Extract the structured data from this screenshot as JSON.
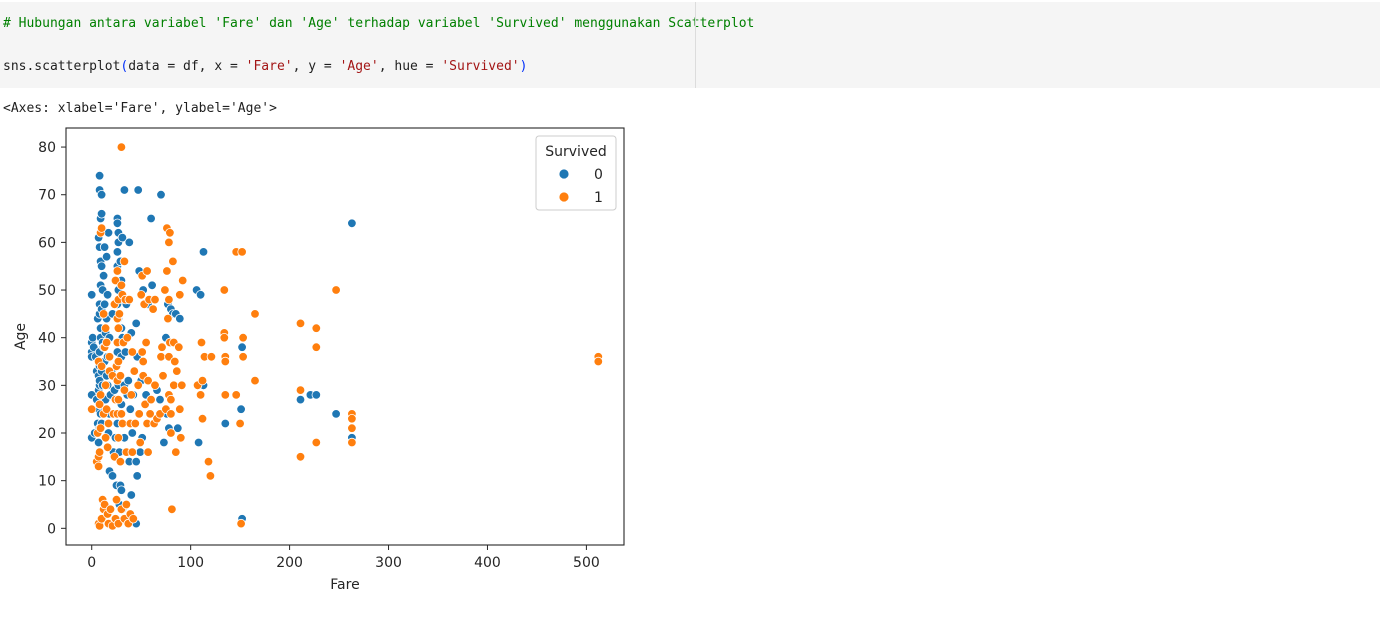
{
  "code_cell": {
    "comment": "# Hubungan antara variabel 'Fare' dan 'Age' terhadap variabel 'Survived' menggunakan Scatterplot",
    "call": {
      "fn": "sns.scatterplot",
      "open": "(",
      "arg1": "data = df, x = ",
      "x_str": "'Fare'",
      "arg2": ", y = ",
      "y_str": "'Age'",
      "arg3": ", hue = ",
      "hue_str": "'Survived'",
      "close": ")"
    }
  },
  "output_text": "<Axes: xlabel='Fare', ylabel='Age'>",
  "chart_data": {
    "type": "scatter",
    "xlabel": "Fare",
    "ylabel": "Age",
    "xlim": [
      -26,
      538
    ],
    "ylim": [
      -3.5,
      84
    ],
    "xticks": [
      0,
      100,
      200,
      300,
      400,
      500
    ],
    "yticks": [
      0,
      10,
      20,
      30,
      40,
      50,
      60,
      70,
      80
    ],
    "legend": {
      "title": "Survived",
      "position": "top-right"
    },
    "colors": {
      "0": "#1f77b4",
      "1": "#ff7f0e"
    },
    "series": [
      {
        "name": "0",
        "points": [
          [
            0,
            49
          ],
          [
            0,
            39
          ],
          [
            0,
            37
          ],
          [
            0,
            36
          ],
          [
            0,
            28
          ],
          [
            0,
            19
          ],
          [
            1,
            40
          ],
          [
            2,
            38
          ],
          [
            3,
            20
          ],
          [
            4,
            36
          ],
          [
            5,
            33
          ],
          [
            5,
            27
          ],
          [
            6,
            22
          ],
          [
            6,
            44
          ],
          [
            7,
            61
          ],
          [
            7,
            32
          ],
          [
            7,
            25
          ],
          [
            7,
            35
          ],
          [
            7,
            18
          ],
          [
            7,
            29
          ],
          [
            8,
            74
          ],
          [
            8,
            71
          ],
          [
            8,
            45
          ],
          [
            8,
            21
          ],
          [
            8,
            26
          ],
          [
            8,
            30
          ],
          [
            8,
            34
          ],
          [
            8,
            16
          ],
          [
            8,
            31
          ],
          [
            8,
            37
          ],
          [
            8,
            47
          ],
          [
            8,
            59
          ],
          [
            9,
            65
          ],
          [
            9,
            51
          ],
          [
            9,
            40
          ],
          [
            9,
            28
          ],
          [
            9,
            24
          ],
          [
            9,
            42
          ],
          [
            9,
            56
          ],
          [
            10,
            70
          ],
          [
            10,
            66
          ],
          [
            10,
            55
          ],
          [
            10,
            46
          ],
          [
            10,
            33
          ],
          [
            10,
            22
          ],
          [
            11,
            50
          ],
          [
            11,
            39
          ],
          [
            11,
            30
          ],
          [
            12,
            53
          ],
          [
            12,
            38
          ],
          [
            13,
            47
          ],
          [
            13,
            59
          ],
          [
            13,
            35
          ],
          [
            14,
            41
          ],
          [
            14,
            27
          ],
          [
            15,
            57
          ],
          [
            15,
            44
          ],
          [
            15,
            32
          ],
          [
            16,
            49
          ],
          [
            16,
            30
          ],
          [
            16,
            36
          ],
          [
            17,
            62
          ],
          [
            17,
            20
          ],
          [
            18,
            40
          ],
          [
            18,
            24
          ],
          [
            18,
            12
          ],
          [
            19,
            28
          ],
          [
            20,
            33
          ],
          [
            21,
            45
          ],
          [
            21,
            11
          ],
          [
            22,
            16
          ],
          [
            23,
            29
          ],
          [
            24,
            19
          ],
          [
            25,
            9
          ],
          [
            26,
            65
          ],
          [
            26,
            64
          ],
          [
            26,
            58
          ],
          [
            26,
            55
          ],
          [
            26,
            47
          ],
          [
            26,
            37
          ],
          [
            26,
            22
          ],
          [
            27,
            62
          ],
          [
            27,
            60
          ],
          [
            27,
            50
          ],
          [
            27,
            44
          ],
          [
            27,
            30
          ],
          [
            27,
            24
          ],
          [
            28,
            16
          ],
          [
            28,
            5
          ],
          [
            29,
            56
          ],
          [
            29,
            9
          ],
          [
            30,
            52
          ],
          [
            30,
            42
          ],
          [
            30,
            36
          ],
          [
            30,
            26
          ],
          [
            30,
            8
          ],
          [
            31,
            61
          ],
          [
            31,
            40
          ],
          [
            31,
            4
          ],
          [
            32,
            48
          ],
          [
            33,
            71
          ],
          [
            33,
            30
          ],
          [
            33,
            19
          ],
          [
            34,
            37
          ],
          [
            35,
            47
          ],
          [
            36,
            28
          ],
          [
            37,
            31
          ],
          [
            38,
            60
          ],
          [
            38,
            14
          ],
          [
            39,
            25
          ],
          [
            40,
            41
          ],
          [
            40,
            7
          ],
          [
            41,
            20
          ],
          [
            42,
            28
          ],
          [
            45,
            43
          ],
          [
            45,
            14
          ],
          [
            45,
            1
          ],
          [
            46,
            36
          ],
          [
            46,
            11
          ],
          [
            47,
            71
          ],
          [
            48,
            54
          ],
          [
            49,
            16
          ],
          [
            50,
            31
          ],
          [
            51,
            19
          ],
          [
            52,
            50
          ],
          [
            55,
            28
          ],
          [
            57,
            47
          ],
          [
            60,
            65
          ],
          [
            61,
            51
          ],
          [
            66,
            29
          ],
          [
            69,
            27
          ],
          [
            70,
            70
          ],
          [
            72,
            32
          ],
          [
            73,
            18
          ],
          [
            75,
            40
          ],
          [
            76,
            24
          ],
          [
            77,
            47
          ],
          [
            78,
            21
          ],
          [
            80,
            46
          ],
          [
            82,
            45
          ],
          [
            85,
            45
          ],
          [
            87,
            21
          ],
          [
            89,
            44
          ],
          [
            106,
            50
          ],
          [
            108,
            18
          ],
          [
            110,
            49
          ],
          [
            113,
            58
          ],
          [
            113,
            30
          ],
          [
            135,
            22
          ],
          [
            151,
            25
          ],
          [
            152,
            2
          ],
          [
            152,
            38
          ],
          [
            211,
            27
          ],
          [
            221,
            28
          ],
          [
            227,
            28
          ],
          [
            247,
            24
          ],
          [
            263,
            64
          ],
          [
            263,
            19
          ]
        ]
      },
      {
        "name": "1",
        "points": [
          [
            0,
            25
          ],
          [
            5,
            14
          ],
          [
            6,
            20
          ],
          [
            7,
            35
          ],
          [
            7,
            15
          ],
          [
            7,
            13
          ],
          [
            7,
            1
          ],
          [
            8,
            26
          ],
          [
            8,
            16
          ],
          [
            8,
            0.5
          ],
          [
            9,
            62
          ],
          [
            9,
            28
          ],
          [
            9,
            21
          ],
          [
            10,
            63
          ],
          [
            10,
            34
          ],
          [
            10,
            2
          ],
          [
            11,
            6
          ],
          [
            12,
            45
          ],
          [
            12,
            24
          ],
          [
            12,
            4
          ],
          [
            13,
            38
          ],
          [
            13,
            5
          ],
          [
            14,
            42
          ],
          [
            14,
            30
          ],
          [
            14,
            19
          ],
          [
            15,
            39
          ],
          [
            15,
            25
          ],
          [
            16,
            17
          ],
          [
            16,
            3
          ],
          [
            17,
            22
          ],
          [
            17,
            1
          ],
          [
            18,
            33
          ],
          [
            18,
            36
          ],
          [
            19,
            4
          ],
          [
            21,
            32
          ],
          [
            21,
            0.5
          ],
          [
            22,
            24
          ],
          [
            23,
            47
          ],
          [
            23,
            15
          ],
          [
            24,
            52
          ],
          [
            24,
            27
          ],
          [
            24,
            2
          ],
          [
            25,
            34
          ],
          [
            25,
            6
          ],
          [
            26,
            54
          ],
          [
            26,
            44
          ],
          [
            26,
            39
          ],
          [
            26,
            31
          ],
          [
            26,
            24
          ],
          [
            27,
            48
          ],
          [
            27,
            42
          ],
          [
            27,
            35
          ],
          [
            27,
            27
          ],
          [
            27,
            19
          ],
          [
            27,
            1
          ],
          [
            28,
            45
          ],
          [
            29,
            32
          ],
          [
            29,
            14
          ],
          [
            30,
            80
          ],
          [
            30,
            51
          ],
          [
            30,
            24
          ],
          [
            30,
            4
          ],
          [
            31,
            49
          ],
          [
            31,
            22
          ],
          [
            32,
            39
          ],
          [
            33,
            56
          ],
          [
            33,
            29
          ],
          [
            33,
            2
          ],
          [
            34,
            48
          ],
          [
            35,
            16
          ],
          [
            35,
            5
          ],
          [
            36,
            40
          ],
          [
            37,
            1
          ],
          [
            38,
            48
          ],
          [
            39,
            22
          ],
          [
            39,
            3
          ],
          [
            40,
            28
          ],
          [
            41,
            37
          ],
          [
            41,
            16
          ],
          [
            42,
            2
          ],
          [
            43,
            33
          ],
          [
            44,
            22
          ],
          [
            47,
            30
          ],
          [
            48,
            24
          ],
          [
            49,
            18
          ],
          [
            50,
            49
          ],
          [
            51,
            53
          ],
          [
            51,
            37
          ],
          [
            52,
            35
          ],
          [
            52,
            32
          ],
          [
            53,
            47
          ],
          [
            54,
            26
          ],
          [
            55,
            39
          ],
          [
            56,
            54
          ],
          [
            56,
            22
          ],
          [
            57,
            31
          ],
          [
            57,
            16
          ],
          [
            58,
            48
          ],
          [
            59,
            24
          ],
          [
            60,
            27
          ],
          [
            62,
            46
          ],
          [
            63,
            22
          ],
          [
            64,
            48
          ],
          [
            64,
            30
          ],
          [
            66,
            23
          ],
          [
            69,
            24
          ],
          [
            70,
            36
          ],
          [
            71,
            38
          ],
          [
            72,
            32
          ],
          [
            74,
            50
          ],
          [
            75,
            25
          ],
          [
            76,
            54
          ],
          [
            76,
            63
          ],
          [
            77,
            44
          ],
          [
            78,
            48
          ],
          [
            78,
            60
          ],
          [
            78,
            28
          ],
          [
            78,
            36
          ],
          [
            79,
            62
          ],
          [
            79,
            39
          ],
          [
            80,
            27
          ],
          [
            80,
            24
          ],
          [
            80,
            20
          ],
          [
            81,
            4
          ],
          [
            82,
            56
          ],
          [
            83,
            39
          ],
          [
            83,
            30
          ],
          [
            84,
            35
          ],
          [
            85,
            16
          ],
          [
            86,
            33
          ],
          [
            88,
            38
          ],
          [
            89,
            49
          ],
          [
            89,
            25
          ],
          [
            90,
            19
          ],
          [
            91,
            30
          ],
          [
            92,
            52
          ],
          [
            107,
            30
          ],
          [
            110,
            28
          ],
          [
            111,
            39
          ],
          [
            112,
            31
          ],
          [
            112,
            23
          ],
          [
            114,
            36
          ],
          [
            118,
            14
          ],
          [
            120,
            11
          ],
          [
            121,
            36
          ],
          [
            134,
            50
          ],
          [
            134,
            41
          ],
          [
            134,
            40
          ],
          [
            135,
            36
          ],
          [
            135,
            35
          ],
          [
            135,
            28
          ],
          [
            146,
            28
          ],
          [
            146,
            58
          ],
          [
            150,
            22
          ],
          [
            151,
            1
          ],
          [
            152,
            58
          ],
          [
            153,
            40
          ],
          [
            153,
            36
          ],
          [
            165,
            45
          ],
          [
            165,
            31
          ],
          [
            211,
            43
          ],
          [
            211,
            29
          ],
          [
            211,
            15
          ],
          [
            227,
            42
          ],
          [
            227,
            38
          ],
          [
            227,
            18
          ],
          [
            247,
            50
          ],
          [
            263,
            24
          ],
          [
            263,
            23
          ],
          [
            263,
            21
          ],
          [
            263,
            18
          ],
          [
            512,
            36
          ],
          [
            512,
            35
          ]
        ]
      }
    ]
  }
}
